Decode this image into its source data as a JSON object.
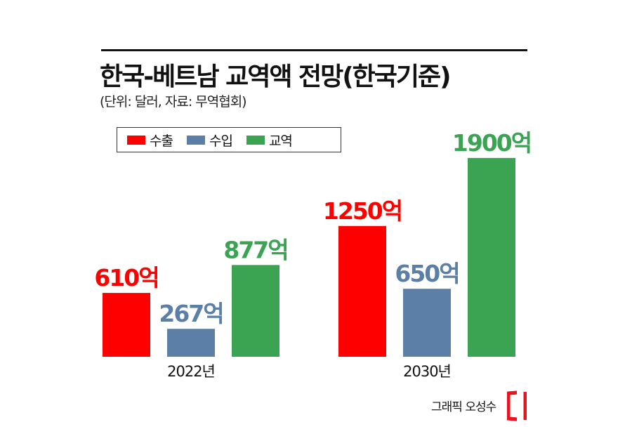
{
  "header": {
    "title": "한국-베트남 교역액 전망(한국기준)",
    "subtitle": "(단위: 달러, 자료: 무역협회)"
  },
  "legend": {
    "items": [
      {
        "label": "수출",
        "color": "#ff0000"
      },
      {
        "label": "수입",
        "color": "#5b7fa6"
      },
      {
        "label": "교역",
        "color": "#3aa453"
      }
    ]
  },
  "chart_data": {
    "type": "bar",
    "categories": [
      "2022년",
      "2030년"
    ],
    "series": [
      {
        "name": "수출",
        "values": [
          610,
          1250
        ],
        "color": "#ff0000",
        "labels": [
          "610억",
          "1250억"
        ]
      },
      {
        "name": "수입",
        "values": [
          267,
          650
        ],
        "color": "#5b7fa6",
        "labels": [
          "267억",
          "650억"
        ]
      },
      {
        "name": "교역",
        "values": [
          877,
          1900
        ],
        "color": "#3aa453",
        "labels": [
          "877억",
          "1900억"
        ]
      }
    ],
    "title": "한국-베트남 교역액 전망(한국기준)",
    "xlabel": "",
    "ylabel": "",
    "ylim": [
      0,
      2000
    ],
    "grid": false,
    "legend_position": "top-left"
  },
  "footer": {
    "credit": "그래픽 오성수",
    "logo_icon": "red-bracket-logo-icon"
  }
}
